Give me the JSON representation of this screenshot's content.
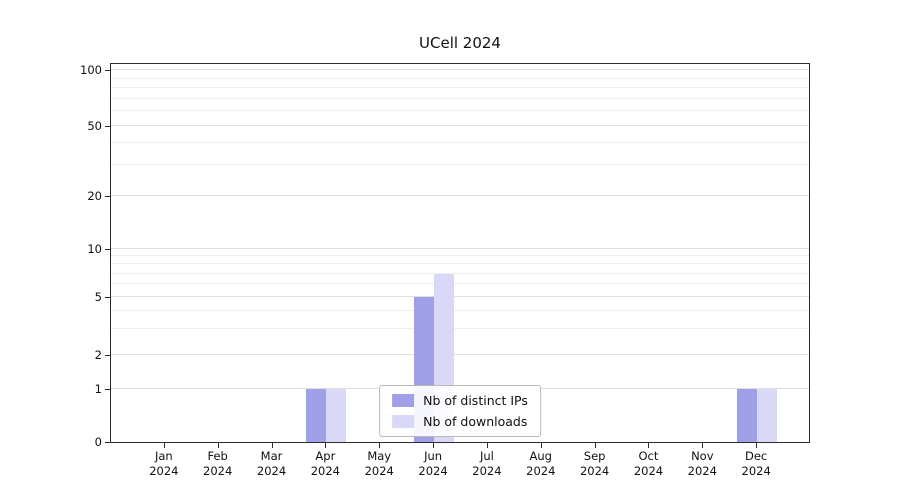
{
  "title": "UCell 2024",
  "chart_data": {
    "type": "bar",
    "title": "UCell 2024",
    "categories": [
      "Jan 2024",
      "Feb 2024",
      "Mar 2024",
      "Apr 2024",
      "May 2024",
      "Jun 2024",
      "Jul 2024",
      "Aug 2024",
      "Sep 2024",
      "Oct 2024",
      "Nov 2024",
      "Dec 2024"
    ],
    "series": [
      {
        "name": "Nb of distinct IPs",
        "color": "#a0a0e8",
        "values": [
          0,
          0,
          0,
          1,
          0,
          5,
          0,
          0,
          0,
          0,
          0,
          1
        ]
      },
      {
        "name": "Nb of downloads",
        "color": "#d9d9f7",
        "values": [
          0,
          0,
          0,
          1,
          0,
          7,
          0,
          0,
          0,
          0,
          0,
          1
        ]
      }
    ],
    "xlabel": "",
    "ylabel": "",
    "yscale": "symlog",
    "yticks": [
      0,
      1,
      2,
      5,
      10,
      20,
      50,
      100
    ],
    "minor_gridlines": [
      3,
      4,
      6,
      7,
      8,
      9,
      30,
      40,
      60,
      70,
      80,
      90
    ],
    "ylim": [
      0,
      110
    ],
    "grid": true,
    "legend_position": "lower center"
  }
}
